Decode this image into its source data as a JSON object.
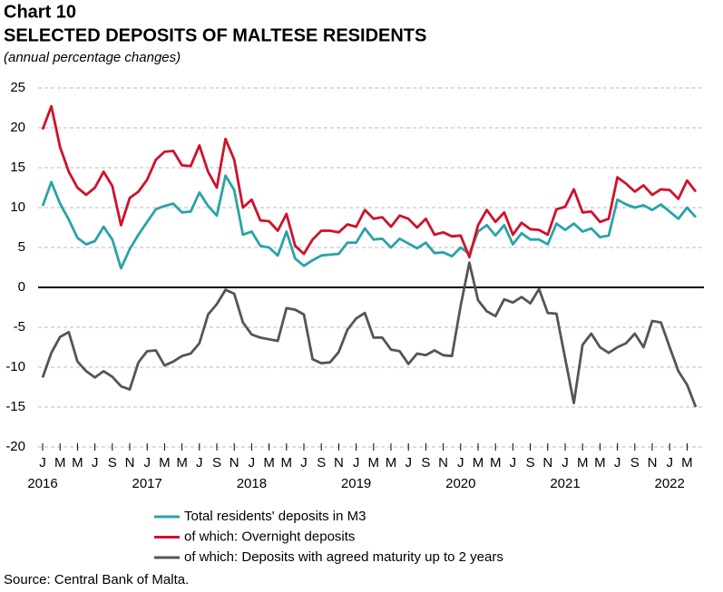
{
  "chart_data": {
    "type": "line",
    "chart_label": "Chart 10",
    "title": "SELECTED DEPOSITS OF MALTESE RESIDENTS",
    "subtitle": "(annual percentage changes)",
    "source": "Source: Central Bank of Malta.",
    "categories": [
      "J",
      null,
      "M",
      null,
      "M",
      null,
      "J",
      null,
      "S",
      null,
      "N",
      null,
      "J",
      null,
      "M",
      null,
      "M",
      null,
      "J",
      null,
      "S",
      null,
      "N",
      null,
      "J",
      null,
      "M",
      null,
      "M",
      null,
      "J",
      null,
      "S",
      null,
      "N",
      null,
      "J",
      null,
      "M",
      null,
      "M",
      null,
      "J",
      null,
      "S",
      null,
      "N",
      null,
      "J",
      null,
      "M",
      null,
      "M",
      null,
      "J",
      null,
      "S",
      null,
      "N",
      null,
      "J",
      null,
      "M",
      null,
      "M",
      null,
      "J",
      null,
      "S",
      null,
      "N",
      null,
      "J",
      null,
      "M",
      null
    ],
    "x_group_labels": [
      "2016",
      "2017",
      "2018",
      "2019",
      "2020",
      "2021",
      "2022"
    ],
    "series": [
      {
        "name": "Total residents' deposits in M3",
        "color": "#2aa3a8",
        "values": [
          10.2,
          13.2,
          10.5,
          8.5,
          6.2,
          5.4,
          5.8,
          7.6,
          6.0,
          2.4,
          4.8,
          6.6,
          8.2,
          9.8,
          10.2,
          10.5,
          9.4,
          9.5,
          11.9,
          10.2,
          9.0,
          14.0,
          12.2,
          6.6,
          7.0,
          5.2,
          5.0,
          4.0,
          7.0,
          3.6,
          2.7,
          3.4,
          4.0,
          4.1,
          4.2,
          5.6,
          5.6,
          7.4,
          6.0,
          6.1,
          5.0,
          6.1,
          5.5,
          4.9,
          5.6,
          4.3,
          4.4,
          3.9,
          5.0,
          4.2,
          7.0,
          7.8,
          6.5,
          7.8,
          5.4,
          6.8,
          6.0,
          6.0,
          5.4,
          8.0,
          7.2,
          8.0,
          7.0,
          7.4,
          6.3,
          6.5,
          11.0,
          10.4,
          10.0,
          10.3,
          9.7,
          10.4,
          9.5,
          8.6,
          10.0,
          8.8
        ]
      },
      {
        "name": "of which: Overnight deposits",
        "color": "#d0112b",
        "values": [
          19.8,
          22.7,
          17.6,
          14.5,
          12.5,
          11.6,
          12.5,
          14.5,
          12.7,
          7.8,
          11.2,
          12.0,
          13.5,
          16.0,
          17.0,
          17.1,
          15.3,
          15.2,
          17.8,
          14.5,
          12.5,
          18.6,
          16.0,
          10.0,
          11.0,
          8.4,
          8.3,
          7.1,
          9.2,
          5.2,
          4.2,
          6.0,
          7.1,
          7.1,
          6.9,
          7.9,
          7.6,
          9.7,
          8.6,
          8.8,
          7.6,
          9.0,
          8.6,
          7.5,
          8.6,
          6.6,
          6.9,
          6.4,
          6.5,
          3.8,
          7.8,
          9.7,
          8.2,
          9.4,
          6.6,
          8.1,
          7.3,
          7.2,
          6.6,
          9.8,
          10.1,
          12.3,
          9.4,
          9.5,
          8.2,
          8.6,
          13.8,
          13.0,
          12.0,
          12.8,
          11.6,
          12.3,
          12.2,
          11.1,
          13.4,
          12.0
        ]
      },
      {
        "name": "of which: Deposits with agreed maturity up to 2 years",
        "color": "#555555",
        "values": [
          -11.3,
          -8.2,
          -6.2,
          -5.6,
          -9.3,
          -10.5,
          -11.3,
          -10.5,
          -11.2,
          -12.4,
          -12.8,
          -9.4,
          -8.0,
          -7.9,
          -9.8,
          -9.3,
          -8.6,
          -8.3,
          -7.0,
          -3.4,
          -2.1,
          -0.3,
          -0.8,
          -4.4,
          -5.9,
          -6.3,
          -6.5,
          -6.7,
          -2.6,
          -2.8,
          -3.4,
          -9.0,
          -9.5,
          -9.4,
          -8.1,
          -5.3,
          -3.9,
          -3.2,
          -6.3,
          -6.3,
          -7.8,
          -8.0,
          -9.6,
          -8.3,
          -8.5,
          -7.9,
          -8.5,
          -8.6,
          -2.3,
          3.1,
          -1.6,
          -3.0,
          -3.6,
          -1.5,
          -1.9,
          -1.2,
          -2.0,
          -0.2,
          -3.2,
          -3.3,
          -8.9,
          -14.5,
          -7.2,
          -5.8,
          -7.5,
          -8.2,
          -7.5,
          -7.0,
          -5.8,
          -7.5,
          -4.2,
          -4.4,
          -7.5,
          -10.5,
          -12.2,
          -15.0
        ]
      }
    ],
    "ylim": [
      -20,
      25
    ],
    "yticks": [
      -20,
      -15,
      -10,
      -5,
      0,
      5,
      10,
      15,
      20,
      25
    ],
    "grid": true
  }
}
